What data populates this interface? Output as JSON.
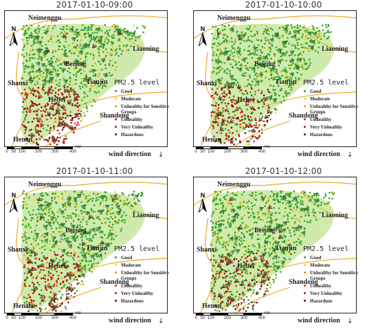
{
  "panels": [
    {
      "title": "2017-01-10-09:00",
      "polluted_share": 0.38
    },
    {
      "title": "2017-01-10-10:00",
      "polluted_share": 0.34
    },
    {
      "title": "2017-01-10-11:00",
      "polluted_share": 0.24
    },
    {
      "title": "2017-01-10-12:00",
      "polluted_share": 0.22
    }
  ],
  "regions": {
    "neimenggu": "Neimenggu",
    "liaoning": "Liaoning",
    "beijing": "Beijing",
    "tianjin": "Tianjin",
    "shanxi": "Shanxi",
    "hebei": "Hebei",
    "shandong": "Shandong",
    "henan": "Henan"
  },
  "north_label": "N",
  "legend": {
    "title": "PM2.5 level",
    "items": [
      {
        "label": "Good",
        "color": "#33a02c"
      },
      {
        "label": "Moderate",
        "color": "#d8d83a"
      },
      {
        "label": "Unhealthy for Sensitive Groups",
        "color": "#e69a00"
      },
      {
        "label": "Unhealthy",
        "color": "#d62020"
      },
      {
        "label": "Very Unhealthy",
        "color": "#9b1c1c"
      },
      {
        "label": "Hazardous",
        "color": "#5e0f0f"
      }
    ]
  },
  "scale": {
    "ticks": [
      "0",
      "50",
      "100",
      "200",
      "300",
      "400"
    ],
    "unit": "KM"
  },
  "wind_label": "wind direction",
  "wind_arrow": "↓",
  "colors": {
    "good": "#33a02c",
    "moderate": "#cce03a",
    "usg": "#e6a000",
    "unhealthy": "#d62020",
    "very_unhealthy": "#a00000",
    "hazardous": "#5e0f0f",
    "boundary": "#f0b43c",
    "arrow_green": "#2f7d32",
    "arrow_brown": "#6b3a24"
  }
}
